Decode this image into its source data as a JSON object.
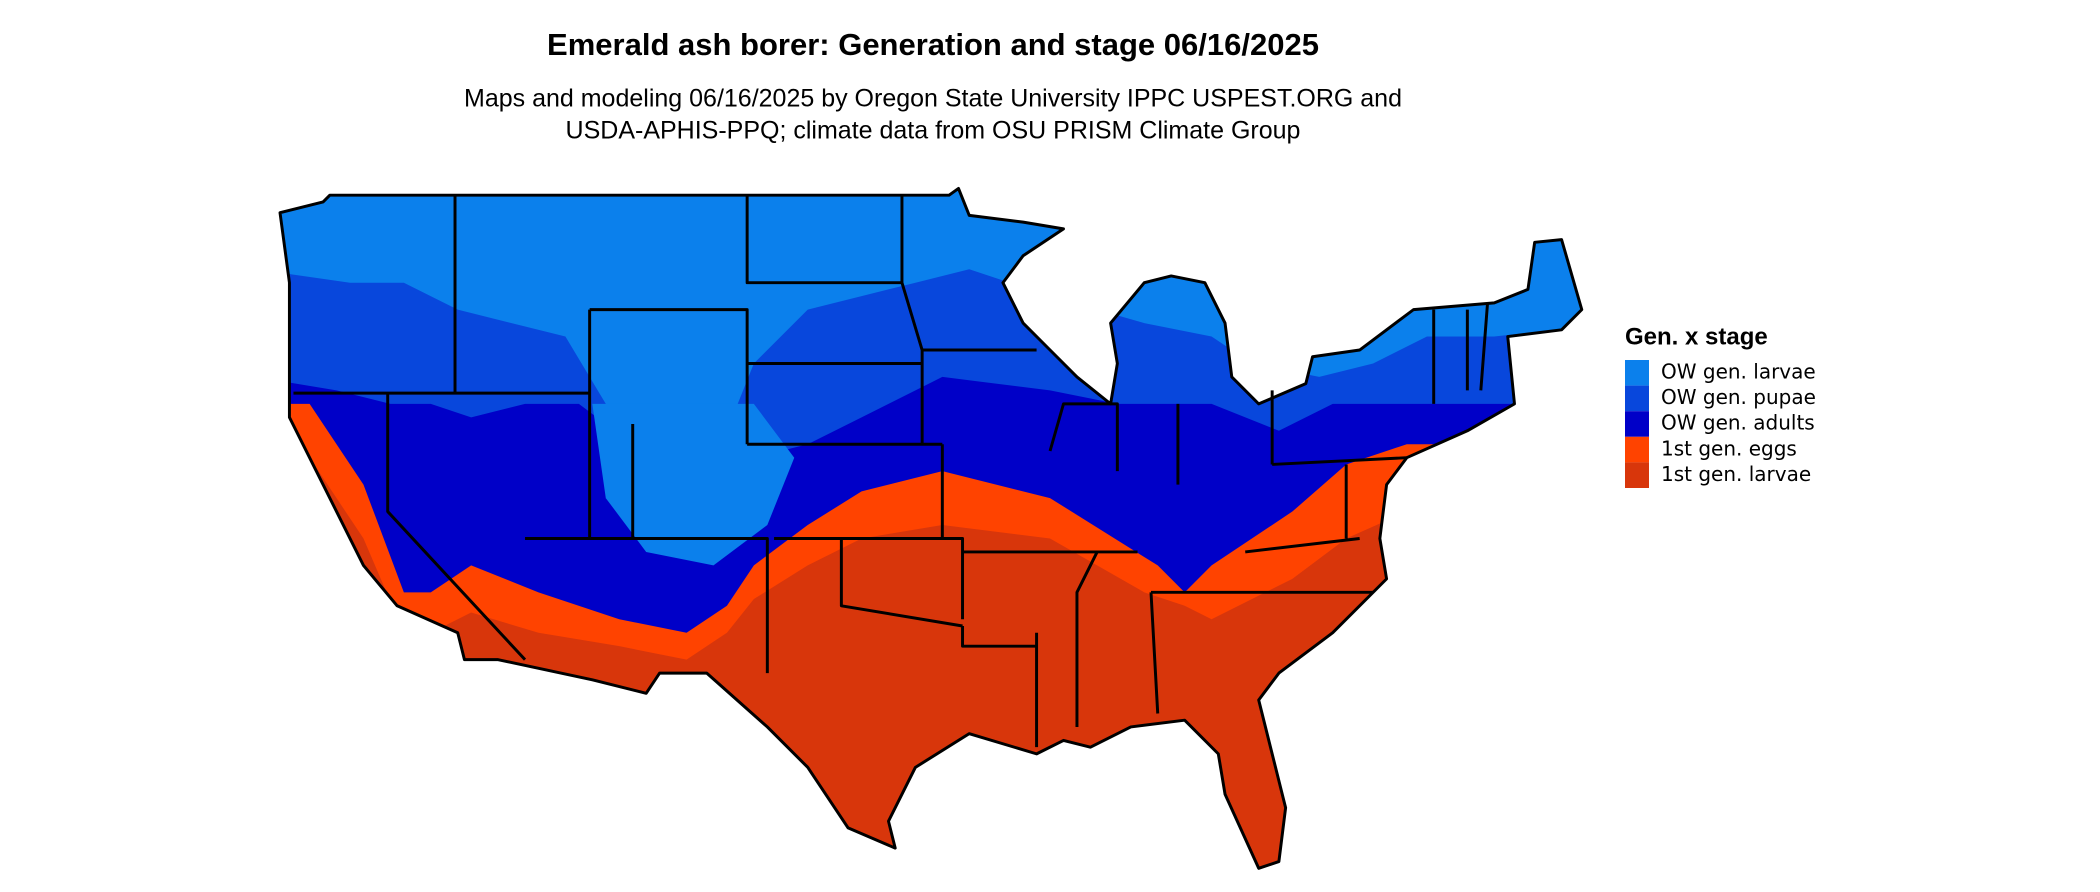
{
  "title": "Emerald ash borer: Generation and stage 06/16/2025",
  "subtitle": [
    "Maps and modeling 06/16/2025 by Oregon State University IPPC USPEST.ORG and",
    "USDA-APHIS-PPQ; climate data from OSU PRISM Climate Group"
  ],
  "legend": {
    "title": "Gen. x stage",
    "items": [
      {
        "name": "OW gen. larvae",
        "color": "#0b80ec"
      },
      {
        "name": "OW gen. pupae",
        "color": "#0847dc"
      },
      {
        "name": "OW gen. adults",
        "color": "#0000c8"
      },
      {
        "name": "1st gen. eggs",
        "color": "#ff4300"
      },
      {
        "name": "1st gen. larvae",
        "color": "#d8360b"
      }
    ]
  }
}
